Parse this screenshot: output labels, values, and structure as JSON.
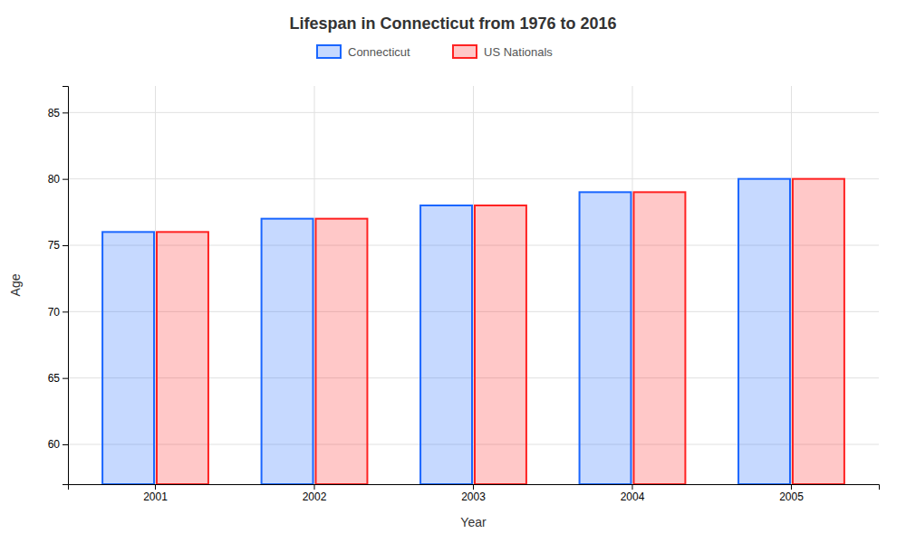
{
  "chart_data": {
    "type": "bar",
    "title": "Lifespan in Connecticut from 1976 to 2016",
    "x_label": "Year",
    "y_label": "Age",
    "categories": [
      "2001",
      "2002",
      "2003",
      "2004",
      "2005"
    ],
    "series": [
      {
        "name": "Connecticut",
        "color": "#1a66ff",
        "values": [
          76,
          77,
          78,
          79,
          80
        ]
      },
      {
        "name": "US Nationals",
        "color": "#ff2222",
        "values": [
          76,
          77,
          78,
          79,
          80
        ]
      }
    ],
    "ylim": [
      57,
      87
    ],
    "yticks": [
      60,
      65,
      70,
      75,
      80,
      85
    ],
    "grid": true,
    "legend": "top"
  }
}
